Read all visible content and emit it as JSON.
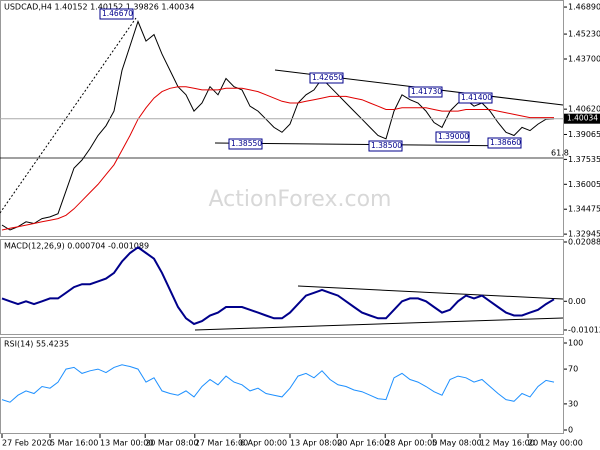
{
  "chart_data": [
    {
      "type": "line",
      "title": "USDCAD,H4  1.40152 1.40152 1.39826 1.40034",
      "watermark": "ActionForex.com",
      "xlim": [
        0,
        69
      ],
      "ylim": [
        1.3283,
        1.472
      ],
      "yticks": [
        1.32945,
        1.34475,
        1.36005,
        1.37535,
        1.39065,
        {
          "value": 1.4062,
          "label": "1.40620"
        },
        {
          "value": 1.437,
          "label": "1.43700"
        },
        {
          "value": 1.4523,
          "label": "1.45230"
        },
        {
          "value": 1.4689,
          "label": "1.46890"
        }
      ],
      "last_price": 1.40034,
      "annotations": [
        "1.46670",
        "1.42650",
        "1.41730",
        "1.41400",
        "1.38550",
        "1.38500",
        "1.39000",
        "1.38660",
        "61.8"
      ],
      "grid": false,
      "series": [
        {
          "color": "#000000",
          "values": [
            1.335,
            1.332,
            1.334,
            1.337,
            1.336,
            1.339,
            1.34,
            1.342,
            1.356,
            1.37,
            1.375,
            1.382,
            1.39,
            1.396,
            1.405,
            1.43,
            1.445,
            1.46,
            1.448,
            1.452,
            1.44,
            1.43,
            1.42,
            1.415,
            1.405,
            1.41,
            1.42,
            1.415,
            1.425,
            1.42,
            1.418,
            1.408,
            1.405,
            1.4,
            1.395,
            1.392,
            1.397,
            1.41,
            1.415,
            1.418,
            1.425,
            1.42,
            1.415,
            1.41,
            1.405,
            1.4,
            1.395,
            1.39,
            1.388,
            1.405,
            1.415,
            1.412,
            1.41,
            1.405,
            1.398,
            1.395,
            1.405,
            1.41,
            1.412,
            1.408,
            1.41,
            1.405,
            1.398,
            1.392,
            1.39,
            1.395,
            1.393,
            1.397,
            1.4,
            1.4003
          ]
        },
        {
          "color": "#e00000",
          "values": [
            1.332,
            1.333,
            1.334,
            1.335,
            1.336,
            1.337,
            1.338,
            1.339,
            1.341,
            1.345,
            1.35,
            1.355,
            1.36,
            1.366,
            1.372,
            1.381,
            1.39,
            1.4,
            1.407,
            1.413,
            1.417,
            1.419,
            1.42,
            1.42,
            1.419,
            1.418,
            1.418,
            1.418,
            1.419,
            1.419,
            1.419,
            1.418,
            1.417,
            1.415,
            1.413,
            1.411,
            1.41,
            1.41,
            1.411,
            1.412,
            1.413,
            1.414,
            1.414,
            1.414,
            1.413,
            1.412,
            1.41,
            1.408,
            1.406,
            1.406,
            1.407,
            1.407,
            1.407,
            1.407,
            1.406,
            1.405,
            1.405,
            1.405,
            1.406,
            1.406,
            1.406,
            1.406,
            1.405,
            1.404,
            1.403,
            1.402,
            1.401,
            1.401,
            1.401,
            1.401
          ]
        }
      ]
    },
    {
      "type": "line",
      "title": "MACD(12,26,9) 0.000704 -0.001089",
      "xlim": [
        0,
        69
      ],
      "ylim": [
        -0.010121,
        0.020884
      ],
      "yticks": [
        -0.010121,
        {
          "value": 0,
          "label": "0.00"
        },
        0.020884
      ],
      "grid": false,
      "series": [
        {
          "color": "#00008b",
          "values": [
            0.001,
            0,
            -0.001,
            0,
            -0.001,
            0,
            0.001,
            0.001,
            0.003,
            0.005,
            0.006,
            0.006,
            0.007,
            0.008,
            0.01,
            0.014,
            0.017,
            0.019,
            0.017,
            0.015,
            0.01,
            0.004,
            -0.002,
            -0.006,
            -0.008,
            -0.007,
            -0.005,
            -0.004,
            -0.002,
            -0.002,
            -0.002,
            -0.003,
            -0.004,
            -0.005,
            -0.006,
            -0.006,
            -0.004,
            -0.001,
            0.002,
            0.003,
            0.004,
            0.003,
            0.002,
            0,
            -0.002,
            -0.004,
            -0.005,
            -0.006,
            -0.006,
            -0.003,
            0,
            0.001,
            0.001,
            0,
            -0.002,
            -0.004,
            -0.003,
            0,
            0.002,
            0.001,
            0.002,
            0,
            -0.002,
            -0.004,
            -0.005,
            -0.005,
            -0.004,
            -0.003,
            -0.001,
            0.0007
          ]
        }
      ]
    },
    {
      "type": "line",
      "title": "RSI(14) 55.4235",
      "xlim": [
        0,
        69
      ],
      "ylim": [
        0,
        100
      ],
      "yticks": [
        0,
        30,
        70,
        100
      ],
      "xticks": [
        {
          "value": 0,
          "label": "27 Feb 2020"
        },
        {
          "value": 6,
          "label": "5 Mar 16:00"
        },
        {
          "value": 12.25,
          "label": "13 Mar 00:00"
        },
        {
          "value": 17.9,
          "label": "20 Mar 08:00"
        },
        {
          "value": 24.1,
          "label": "27 Mar 16:00"
        },
        {
          "value": 29.75,
          "label": "6 Apr 00:00"
        },
        {
          "value": 36,
          "label": "13 Apr 08:00"
        },
        {
          "value": 41.9,
          "label": "20 Apr 16:00"
        },
        {
          "value": 47.9,
          "label": "28 Apr 00:00"
        },
        {
          "value": 53.75,
          "label": "5 May 08:00"
        },
        {
          "value": 59.75,
          "label": "12 May 16:00"
        },
        {
          "value": 65.75,
          "label": "20 May 00:00"
        }
      ],
      "grid": false,
      "series": [
        {
          "color": "#1e90ff",
          "values": [
            35,
            32,
            40,
            45,
            42,
            50,
            48,
            55,
            70,
            72,
            65,
            68,
            70,
            66,
            72,
            75,
            73,
            70,
            55,
            60,
            45,
            42,
            40,
            45,
            38,
            50,
            58,
            52,
            62,
            55,
            52,
            45,
            48,
            42,
            40,
            38,
            48,
            62,
            65,
            60,
            68,
            58,
            52,
            50,
            46,
            44,
            40,
            36,
            35,
            60,
            65,
            58,
            55,
            50,
            44,
            40,
            58,
            62,
            60,
            55,
            58,
            50,
            42,
            35,
            33,
            42,
            38,
            50,
            57,
            55
          ]
        }
      ]
    }
  ]
}
